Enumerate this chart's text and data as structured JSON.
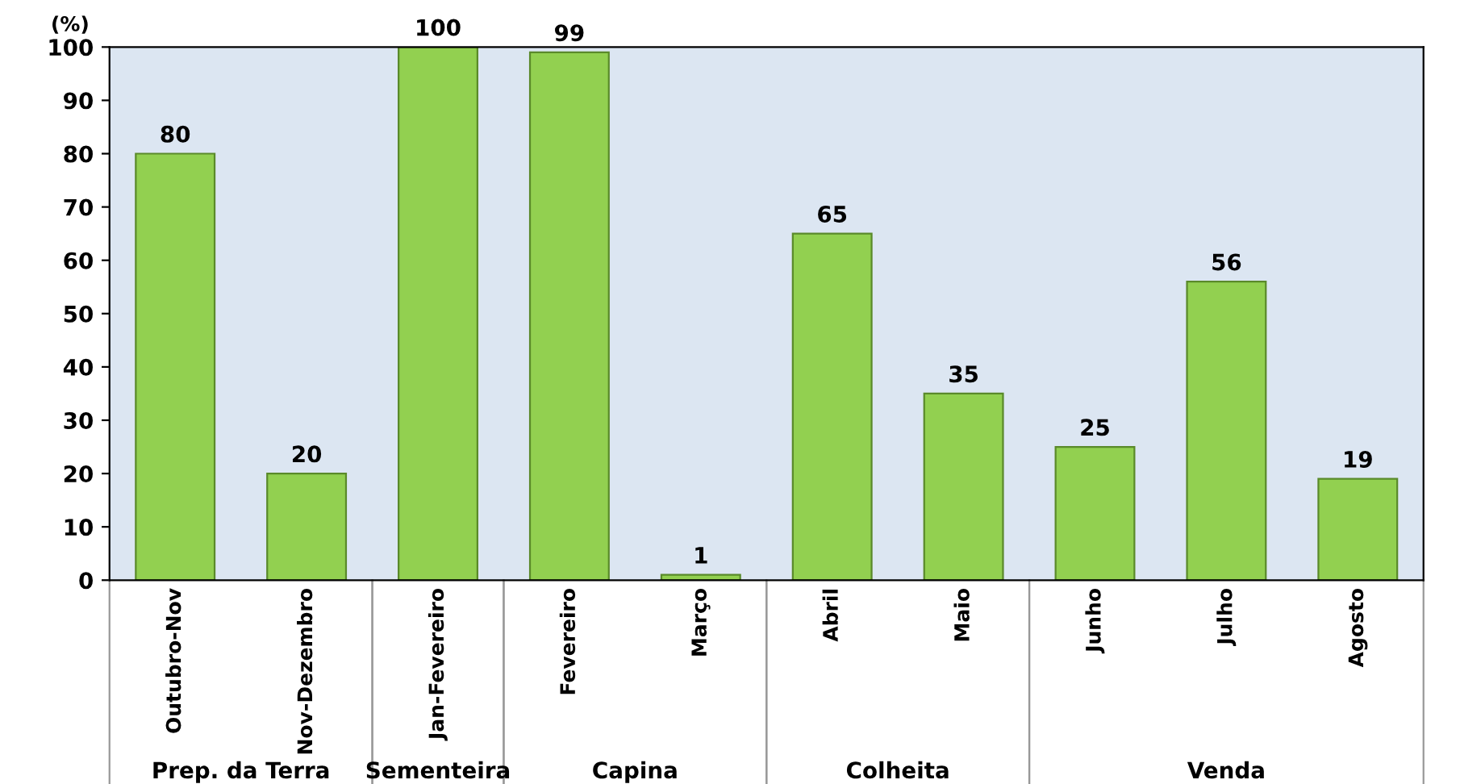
{
  "chart_data": {
    "type": "bar",
    "ylabel": "(%)",
    "categories": [
      "Outubro-Nov",
      "Nov-Dezembro",
      "Jan-Fevereiro",
      "Fevereiro",
      "Março",
      "Abril",
      "Maio",
      "Junho",
      "Julho",
      "Agosto"
    ],
    "values": [
      80,
      20,
      100,
      99,
      1,
      65,
      35,
      25,
      56,
      19
    ],
    "color": "#92d050",
    "ylim": [
      0,
      100
    ],
    "yticks": [
      0,
      10,
      20,
      30,
      40,
      50,
      60,
      70,
      80,
      90,
      100
    ],
    "grid": false,
    "data_labels": true,
    "annotations": [
      "Prep. da Terra",
      "Sementeira",
      "Capina",
      "Colheita",
      "Venda"
    ]
  }
}
